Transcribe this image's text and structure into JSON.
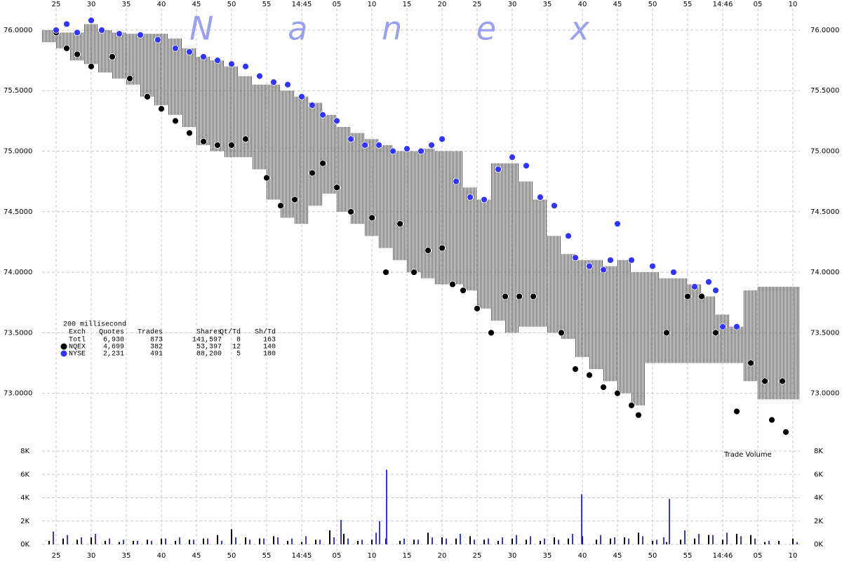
{
  "chart_data": [
    {
      "type": "scatter",
      "watermark": "N a n e x",
      "xlim": [
        23,
        131
      ],
      "xticks": [
        25,
        30,
        35,
        40,
        45,
        50,
        55,
        {
          "value": 60,
          "label": "14:45"
        },
        {
          "value": 65,
          "label": "05"
        },
        {
          "value": 70,
          "label": "10"
        },
        {
          "value": 75,
          "label": "15"
        },
        {
          "value": 80,
          "label": "20"
        },
        {
          "value": 85,
          "label": "25"
        },
        {
          "value": 90,
          "label": "30"
        },
        {
          "value": 95,
          "label": "35"
        },
        {
          "value": 100,
          "label": "40"
        },
        {
          "value": 105,
          "label": "45"
        },
        {
          "value": 110,
          "label": "50"
        },
        {
          "value": 115,
          "label": "55"
        },
        {
          "value": 120,
          "label": "14:46"
        },
        {
          "value": 125,
          "label": "05"
        },
        {
          "value": 130,
          "label": "10"
        }
      ],
      "ylim": [
        72.54,
        76.22
      ],
      "yticks": [
        {
          "value": 73,
          "label": "73.0000"
        },
        {
          "value": 73.5,
          "label": "73.5000"
        },
        {
          "value": 74,
          "label": "74.0000"
        },
        {
          "value": 74.5,
          "label": "74.5000"
        },
        {
          "value": 75,
          "label": "75.0000"
        },
        {
          "value": 75.5,
          "label": "75.5000"
        },
        {
          "value": 76,
          "label": "76.0000"
        }
      ],
      "grid": true,
      "quotes": {
        "color": "#555555",
        "x": [
          24,
          26,
          28,
          30,
          32,
          34,
          36,
          38,
          40,
          42,
          44,
          46,
          48,
          50,
          52,
          54,
          56,
          58,
          60,
          62,
          64,
          66,
          68,
          70,
          72,
          74,
          76,
          78,
          80,
          82,
          84,
          86,
          88,
          90,
          92,
          94,
          96,
          98,
          100,
          102,
          104,
          106,
          108,
          110,
          112,
          114,
          116,
          118,
          120,
          122,
          124,
          126,
          128,
          130
        ],
        "low": [
          75.9,
          75.85,
          75.75,
          75.72,
          75.65,
          75.6,
          75.55,
          75.45,
          75.38,
          75.3,
          75.2,
          75.05,
          75.0,
          74.95,
          74.95,
          74.85,
          74.6,
          74.45,
          74.4,
          74.55,
          74.65,
          74.5,
          74.4,
          74.3,
          74.2,
          74.1,
          74.0,
          73.95,
          73.9,
          73.9,
          73.85,
          73.7,
          73.6,
          73.5,
          73.55,
          73.55,
          73.5,
          73.45,
          73.3,
          73.2,
          73.1,
          73.0,
          72.9,
          73.25,
          73.25,
          73.25,
          73.25,
          73.25,
          73.25,
          73.25,
          73.1,
          72.95,
          72.95,
          72.95
        ],
        "high": [
          76.0,
          75.98,
          75.98,
          76.05,
          76.0,
          75.98,
          75.97,
          75.97,
          75.97,
          75.93,
          75.85,
          75.78,
          75.75,
          75.7,
          75.62,
          75.55,
          75.55,
          75.5,
          75.45,
          75.4,
          75.3,
          75.2,
          75.15,
          75.1,
          75.05,
          75.0,
          75.0,
          75.02,
          75.0,
          75.0,
          74.7,
          74.6,
          74.9,
          74.9,
          74.75,
          74.6,
          74.3,
          74.15,
          74.1,
          74.1,
          74.05,
          74.1,
          74.0,
          74.0,
          73.95,
          73.95,
          73.9,
          73.8,
          73.65,
          73.55,
          73.85,
          73.88,
          73.88,
          73.88
        ]
      },
      "series": [
        {
          "name": "NQEX",
          "color": "#000000",
          "x": [
            25,
            26.5,
            28,
            30,
            33,
            35.5,
            38,
            40,
            42,
            44,
            46,
            48,
            50,
            52,
            55,
            57,
            59,
            61.5,
            63,
            65,
            67,
            70,
            72,
            74,
            76,
            78,
            80,
            81.5,
            83,
            85,
            87,
            89,
            91,
            93,
            97,
            99,
            101,
            103,
            105,
            107,
            108,
            112,
            115,
            117,
            119,
            122,
            124,
            126,
            127,
            128.5,
            129
          ],
          "values": [
            75.98,
            75.85,
            75.8,
            75.7,
            75.78,
            75.6,
            75.45,
            75.35,
            75.25,
            75.15,
            75.08,
            75.05,
            75.05,
            75.1,
            74.78,
            74.55,
            74.6,
            74.82,
            74.9,
            74.7,
            74.5,
            74.45,
            74.0,
            74.4,
            74.0,
            74.18,
            74.2,
            73.9,
            73.85,
            73.7,
            73.5,
            73.8,
            73.8,
            73.8,
            73.5,
            73.2,
            73.15,
            73.05,
            73.0,
            72.9,
            72.82,
            73.5,
            73.8,
            73.8,
            73.5,
            72.85,
            73.25,
            73.1,
            72.78,
            73.1,
            72.68
          ]
        },
        {
          "name": "NYSE",
          "color": "#3333ff",
          "x": [
            25,
            26.5,
            28,
            30,
            31.5,
            34,
            37,
            39.5,
            42,
            44,
            46,
            48,
            50,
            52,
            54,
            56,
            58,
            60,
            61.5,
            63,
            65,
            67,
            69,
            71,
            73,
            75,
            77,
            78.5,
            80,
            82,
            84,
            86,
            88,
            90,
            92,
            94,
            96,
            98,
            99,
            101,
            103,
            104,
            105,
            107,
            110,
            113,
            116,
            118,
            119,
            120,
            122
          ],
          "values": [
            76.0,
            76.05,
            75.98,
            76.08,
            76.0,
            75.97,
            75.96,
            75.92,
            75.85,
            75.82,
            75.78,
            75.75,
            75.72,
            75.7,
            75.62,
            75.57,
            75.55,
            75.45,
            75.38,
            75.3,
            75.25,
            75.1,
            75.05,
            75.05,
            75.0,
            75.02,
            75.0,
            75.05,
            75.1,
            74.75,
            74.62,
            74.6,
            74.85,
            74.95,
            74.88,
            74.62,
            74.55,
            74.3,
            74.12,
            74.05,
            74.02,
            74.1,
            74.4,
            74.1,
            74.05,
            74.0,
            73.88,
            73.92,
            73.85,
            73.55,
            73.55
          ]
        }
      ],
      "stats": {
        "title": "200 millisecond",
        "columns": [
          "Exch",
          "Quotes",
          "Trades",
          "Shares",
          "Qt/Td",
          "Sh/Td"
        ],
        "total_label": "Totl",
        "total": [
          "6,930",
          "873",
          "141,597",
          "8",
          "163"
        ],
        "by_series": [
          [
            "4,699",
            "382",
            "53,397",
            "12",
            "140"
          ],
          [
            "2,231",
            "491",
            "88,200",
            "5",
            "180"
          ]
        ]
      }
    },
    {
      "type": "bar",
      "title": "Trade Volume",
      "xlim": [
        23,
        131
      ],
      "ylim": [
        0,
        8000
      ],
      "yticks": [
        {
          "value": 0,
          "label": "0K"
        },
        {
          "value": 2000,
          "label": "2K"
        },
        {
          "value": 4000,
          "label": "4K"
        },
        {
          "value": 6000,
          "label": "6K"
        },
        {
          "value": 8000,
          "label": "8K"
        }
      ],
      "series": [
        {
          "color": "#000000",
          "x": [
            24,
            26,
            28,
            30,
            32,
            34,
            36,
            38,
            40,
            42,
            44,
            46,
            48,
            50,
            52,
            54,
            56,
            58,
            60,
            62,
            64,
            66,
            68,
            70,
            72,
            74,
            76,
            78,
            80,
            82,
            84,
            86,
            88,
            90,
            92,
            94,
            96,
            98,
            100,
            102,
            104,
            106,
            108,
            110,
            112,
            114,
            116,
            118,
            120,
            122,
            124,
            126,
            128,
            130
          ],
          "values": [
            300,
            500,
            400,
            600,
            300,
            200,
            300,
            400,
            500,
            300,
            400,
            500,
            800,
            1300,
            600,
            500,
            700,
            300,
            200,
            400,
            1200,
            900,
            300,
            400,
            500,
            300,
            400,
            1000,
            600,
            500,
            700,
            400,
            300,
            500,
            400,
            300,
            600,
            500,
            700,
            400,
            500,
            600,
            1000,
            300,
            200,
            400,
            500,
            800,
            400,
            900,
            800,
            200,
            300,
            500
          ]
        },
        {
          "color": "#3333ff",
          "x": [
            24.6,
            26.6,
            28.6,
            30.6,
            32.6,
            34.6,
            36.6,
            38.6,
            40.6,
            42.6,
            44.6,
            46.6,
            48.6,
            50.6,
            52.6,
            54.6,
            56.6,
            58.6,
            60.6,
            62.6,
            64.6,
            65.6,
            66.6,
            68.6,
            70.6,
            71.1,
            72.1,
            74.6,
            76.6,
            78.6,
            80.6,
            82.6,
            84.6,
            86.6,
            88.6,
            90.6,
            92.6,
            94.6,
            96.6,
            98.6,
            99.9,
            102.6,
            104.6,
            106.6,
            108.6,
            110.6,
            111.6,
            112.4,
            114.6,
            116.6,
            118.6,
            120.6,
            122.6,
            124.6,
            126.6,
            128.6,
            130.6
          ],
          "values": [
            1100,
            800,
            600,
            900,
            500,
            400,
            300,
            300,
            500,
            600,
            400,
            500,
            300,
            600,
            400,
            500,
            600,
            500,
            700,
            400,
            600,
            2100,
            500,
            400,
            1000,
            2000,
            6400,
            500,
            400,
            600,
            500,
            900,
            400,
            500,
            600,
            800,
            700,
            500,
            400,
            900,
            4300,
            800,
            600,
            500,
            700,
            400,
            600,
            3900,
            1200,
            900,
            800,
            1000,
            700,
            500,
            300,
            0,
            200
          ]
        }
      ]
    }
  ]
}
